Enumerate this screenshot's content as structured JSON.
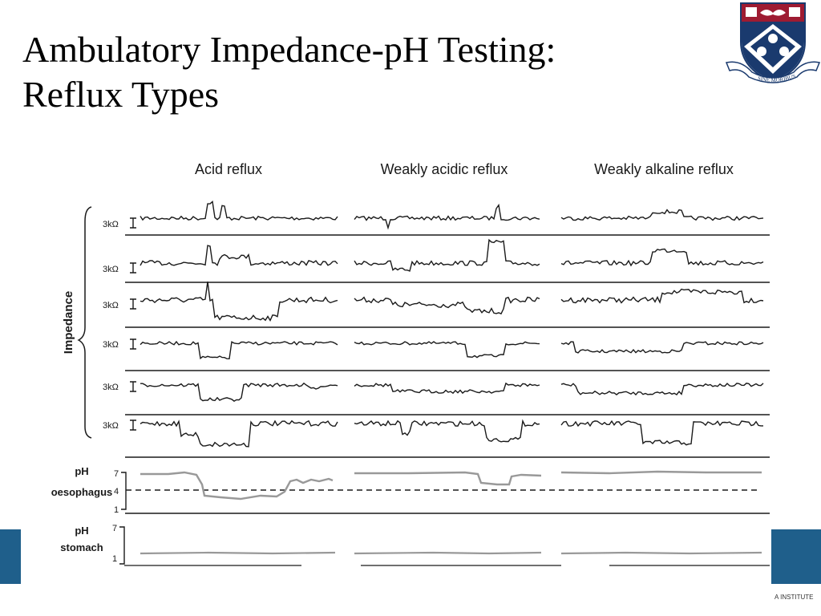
{
  "slide": {
    "title_line1": "Ambulatory Impedance-pH Testing:",
    "title_line2": "Reflux Types",
    "footer_text": "A INSTITUTE",
    "crest_motto": "SINE MORIBUS"
  },
  "figure": {
    "columns": [
      "Acid reflux",
      "Weakly acidic reflux",
      "Weakly alkaline reflux"
    ],
    "impedance_label": "Impedance",
    "scale_label": "3kΩ",
    "ph_oesophagus": {
      "label_line1": "pH",
      "label_line2": "oesophagus",
      "tick_high": "7",
      "tick_mid": "4",
      "tick_low": "1"
    },
    "ph_stomach": {
      "label_line1": "pH",
      "label_line2": "stomach",
      "tick_high": "7",
      "tick_low": "1"
    }
  },
  "colors": {
    "accent_bar": "#1f5f8b",
    "crest_red": "#9e1b32",
    "crest_blue": "#1a3a6e"
  }
}
